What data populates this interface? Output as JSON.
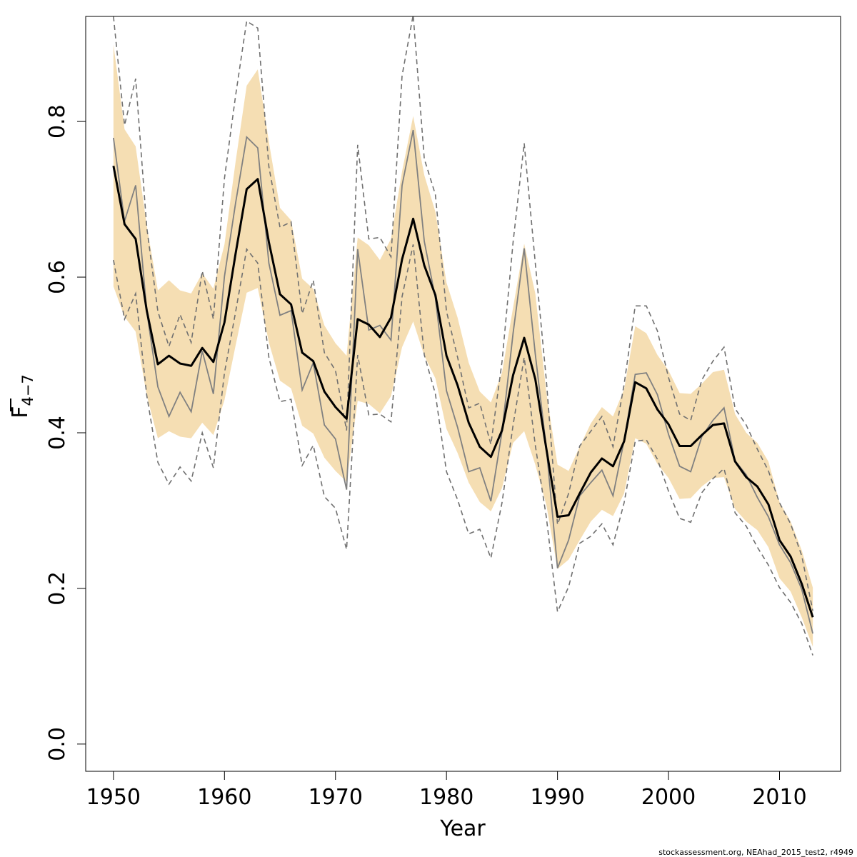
{
  "chart_data": {
    "type": "line",
    "xlabel": "Year",
    "ylabel_main": "F",
    "ylabel_sub": "4−7",
    "footer": "stockassessment.org, NEAhad_2015_test2, r4949",
    "xlim": [
      1947.5,
      2015.5
    ],
    "ylim": [
      -0.035,
      0.935
    ],
    "xticks": [
      1950,
      1960,
      1970,
      1980,
      1990,
      2000,
      2010
    ],
    "xtick_labels": [
      "1950",
      "1960",
      "1970",
      "1980",
      "1990",
      "2000",
      "2010"
    ],
    "yticks": [
      0.0,
      0.2,
      0.4,
      0.6,
      0.8
    ],
    "ytick_labels": [
      "0.0",
      "0.2",
      "0.4",
      "0.6",
      "0.8"
    ],
    "grid": false,
    "colors": {
      "band": "#f5deb3",
      "estimate": "#000000",
      "comparison": "#808080",
      "comparison_ci": "#707070"
    },
    "years": [
      1950,
      1951,
      1952,
      1953,
      1954,
      1955,
      1956,
      1957,
      1958,
      1959,
      1960,
      1961,
      1962,
      1963,
      1964,
      1965,
      1966,
      1967,
      1968,
      1969,
      1970,
      1971,
      1972,
      1973,
      1974,
      1975,
      1976,
      1977,
      1978,
      1979,
      1980,
      1981,
      1982,
      1983,
      1984,
      1985,
      1986,
      1987,
      1988,
      1989,
      1990,
      1991,
      1992,
      1993,
      1994,
      1995,
      1996,
      1997,
      1998,
      1999,
      2000,
      2001,
      2002,
      2003,
      2004,
      2005,
      2006,
      2007,
      2008,
      2009,
      2010,
      2011,
      2012,
      2013
    ],
    "series": [
      {
        "role": "estimate",
        "values": [
          0.743,
          0.668,
          0.649,
          0.557,
          0.488,
          0.499,
          0.489,
          0.486,
          0.509,
          0.491,
          0.542,
          0.63,
          0.713,
          0.726,
          0.645,
          0.578,
          0.565,
          0.503,
          0.492,
          0.453,
          0.433,
          0.418,
          0.546,
          0.539,
          0.523,
          0.548,
          0.623,
          0.675,
          0.615,
          0.577,
          0.499,
          0.461,
          0.413,
          0.382,
          0.369,
          0.403,
          0.474,
          0.522,
          0.469,
          0.379,
          0.292,
          0.294,
          0.322,
          0.349,
          0.367,
          0.357,
          0.389,
          0.465,
          0.457,
          0.43,
          0.411,
          0.383,
          0.383,
          0.397,
          0.41,
          0.412,
          0.363,
          0.343,
          0.331,
          0.308,
          0.262,
          0.241,
          0.206,
          0.163
        ],
        "lower": [
          0.588,
          0.549,
          0.53,
          0.448,
          0.393,
          0.402,
          0.395,
          0.393,
          0.413,
          0.397,
          0.442,
          0.512,
          0.58,
          0.586,
          0.516,
          0.467,
          0.457,
          0.409,
          0.399,
          0.368,
          0.351,
          0.337,
          0.441,
          0.437,
          0.425,
          0.447,
          0.51,
          0.543,
          0.499,
          0.47,
          0.405,
          0.374,
          0.336,
          0.311,
          0.299,
          0.329,
          0.387,
          0.402,
          0.359,
          0.307,
          0.225,
          0.237,
          0.262,
          0.286,
          0.301,
          0.293,
          0.322,
          0.393,
          0.386,
          0.36,
          0.342,
          0.315,
          0.316,
          0.331,
          0.342,
          0.343,
          0.302,
          0.286,
          0.275,
          0.253,
          0.213,
          0.196,
          0.163,
          0.125
        ],
        "upper": [
          0.899,
          0.79,
          0.768,
          0.666,
          0.583,
          0.596,
          0.583,
          0.579,
          0.605,
          0.585,
          0.642,
          0.748,
          0.846,
          0.867,
          0.774,
          0.689,
          0.673,
          0.598,
          0.585,
          0.538,
          0.515,
          0.499,
          0.651,
          0.641,
          0.622,
          0.649,
          0.736,
          0.807,
          0.731,
          0.684,
          0.593,
          0.548,
          0.49,
          0.453,
          0.439,
          0.477,
          0.561,
          0.643,
          0.579,
          0.451,
          0.359,
          0.351,
          0.382,
          0.412,
          0.433,
          0.421,
          0.456,
          0.537,
          0.528,
          0.5,
          0.48,
          0.451,
          0.45,
          0.463,
          0.478,
          0.481,
          0.424,
          0.4,
          0.387,
          0.363,
          0.311,
          0.286,
          0.249,
          0.201
        ]
      },
      {
        "role": "comparison",
        "values": [
          0.779,
          0.672,
          0.718,
          0.556,
          0.459,
          0.421,
          0.452,
          0.427,
          0.505,
          0.45,
          0.601,
          0.695,
          0.78,
          0.766,
          0.618,
          0.551,
          0.557,
          0.455,
          0.49,
          0.41,
          0.392,
          0.327,
          0.636,
          0.532,
          0.538,
          0.519,
          0.718,
          0.789,
          0.646,
          0.573,
          0.454,
          0.407,
          0.35,
          0.355,
          0.312,
          0.401,
          0.528,
          0.637,
          0.501,
          0.38,
          0.226,
          0.262,
          0.319,
          0.336,
          0.352,
          0.319,
          0.39,
          0.475,
          0.477,
          0.449,
          0.398,
          0.357,
          0.35,
          0.395,
          0.416,
          0.432,
          0.364,
          0.346,
          0.317,
          0.292,
          0.256,
          0.233,
          0.199,
          0.142
        ],
        "lower": [
          0.622,
          0.546,
          0.579,
          0.448,
          0.362,
          0.334,
          0.356,
          0.338,
          0.4,
          0.355,
          0.477,
          0.555,
          0.636,
          0.618,
          0.497,
          0.44,
          0.443,
          0.358,
          0.384,
          0.318,
          0.303,
          0.25,
          0.5,
          0.423,
          0.424,
          0.414,
          0.575,
          0.642,
          0.5,
          0.45,
          0.35,
          0.314,
          0.27,
          0.276,
          0.239,
          0.31,
          0.41,
          0.497,
          0.384,
          0.291,
          0.17,
          0.202,
          0.258,
          0.267,
          0.283,
          0.256,
          0.31,
          0.389,
          0.391,
          0.366,
          0.325,
          0.29,
          0.285,
          0.323,
          0.341,
          0.354,
          0.297,
          0.28,
          0.253,
          0.23,
          0.201,
          0.182,
          0.155,
          0.114
        ],
        "upper": [
          0.935,
          0.795,
          0.855,
          0.664,
          0.556,
          0.511,
          0.552,
          0.516,
          0.608,
          0.546,
          0.727,
          0.833,
          0.929,
          0.92,
          0.742,
          0.664,
          0.671,
          0.553,
          0.596,
          0.503,
          0.48,
          0.403,
          0.77,
          0.649,
          0.651,
          0.626,
          0.859,
          0.937,
          0.752,
          0.706,
          0.556,
          0.497,
          0.432,
          0.438,
          0.385,
          0.491,
          0.645,
          0.772,
          0.618,
          0.467,
          0.282,
          0.322,
          0.383,
          0.402,
          0.421,
          0.382,
          0.462,
          0.563,
          0.563,
          0.531,
          0.471,
          0.424,
          0.416,
          0.468,
          0.492,
          0.51,
          0.431,
          0.41,
          0.379,
          0.351,
          0.31,
          0.283,
          0.242,
          0.171
        ]
      }
    ]
  }
}
